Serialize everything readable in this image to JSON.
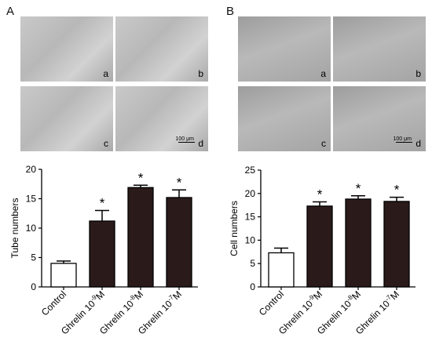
{
  "panels": [
    {
      "letter": "A",
      "images": [
        {
          "label": "a"
        },
        {
          "label": "b"
        },
        {
          "label": "c"
        },
        {
          "label": "d",
          "scale_text": "100 μm"
        }
      ]
    },
    {
      "letter": "B",
      "images": [
        {
          "label": "a"
        },
        {
          "label": "b"
        },
        {
          "label": "c"
        },
        {
          "label": "d",
          "scale_text": "100 μm"
        }
      ]
    }
  ],
  "chart_data": [
    {
      "type": "bar",
      "ylabel": "Tube numbers",
      "ylim": [
        0,
        20
      ],
      "yticks": [
        "0",
        "5",
        "10",
        "15",
        "20"
      ],
      "categories": [
        {
          "base": "Control",
          "exp": ""
        },
        {
          "base": "Ghrelin 10",
          "exp": "-9",
          "unit": "M"
        },
        {
          "base": "Ghrelin 10",
          "exp": "-8",
          "unit": "M"
        },
        {
          "base": "Ghrelin 10",
          "exp": "-7",
          "unit": "M"
        }
      ],
      "values": [
        4.0,
        11.2,
        16.9,
        15.2
      ],
      "errors": [
        0.4,
        1.8,
        0.4,
        1.3
      ],
      "significance": [
        "",
        "*",
        "*",
        "*"
      ],
      "colors": [
        "#ffffff",
        "#2a1a1a",
        "#2a1a1a",
        "#2a1a1a"
      ]
    },
    {
      "type": "bar",
      "ylabel": "Cell numbers",
      "ylim": [
        0,
        25
      ],
      "yticks": [
        "0",
        "5",
        "10",
        "15",
        "20",
        "25"
      ],
      "categories": [
        {
          "base": "Control",
          "exp": ""
        },
        {
          "base": "Ghrelin 10",
          "exp": "-9",
          "unit": "M"
        },
        {
          "base": "Ghrelin 10",
          "exp": "-8",
          "unit": "M"
        },
        {
          "base": "Ghrelin 10",
          "exp": "-7",
          "unit": "M"
        }
      ],
      "values": [
        7.3,
        17.3,
        18.8,
        18.3
      ],
      "errors": [
        1.0,
        0.9,
        0.7,
        0.9
      ],
      "significance": [
        "",
        "*",
        "*",
        "*"
      ],
      "colors": [
        "#ffffff",
        "#2a1a1a",
        "#2a1a1a",
        "#2a1a1a"
      ]
    }
  ]
}
